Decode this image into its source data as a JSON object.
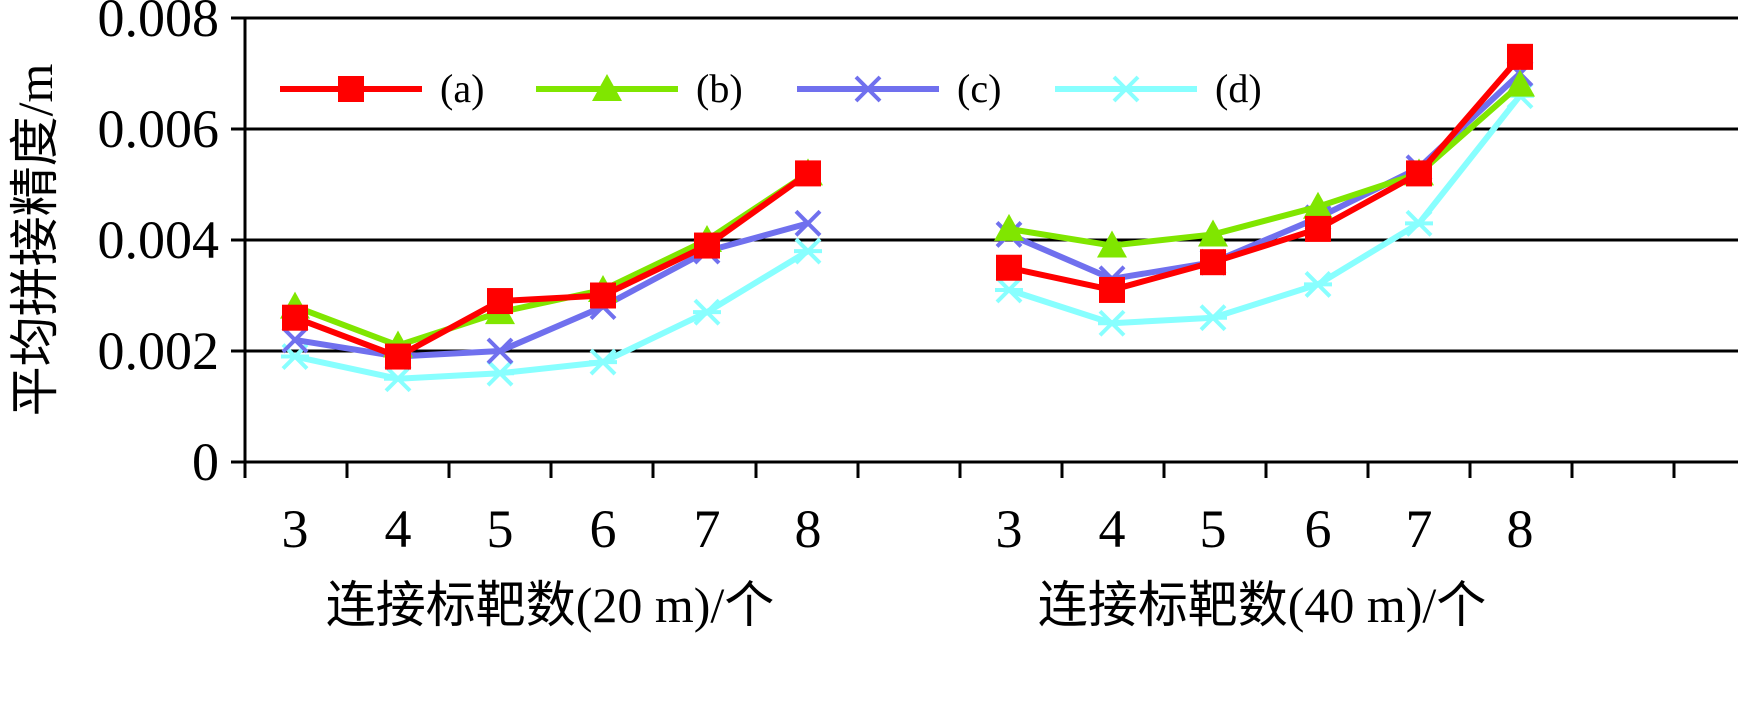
{
  "chart_data": {
    "type": "line",
    "ylabel": "平均拼接精度/m",
    "ylim": [
      0,
      0.008
    ],
    "yticks": [
      "0",
      "0.002",
      "0.004",
      "0.006",
      "0.008"
    ],
    "grid": true,
    "legend_position": "top",
    "colors": {
      "a": "#ff0000",
      "b": "#80e600",
      "c": "#7070ee",
      "d": "#88ffff",
      "axis": "#000000"
    },
    "groups": [
      {
        "xlabel": "连接标靶数(20 m)/个",
        "categories": [
          "3",
          "4",
          "5",
          "6",
          "7",
          "8"
        ],
        "series": [
          {
            "name": "(a)",
            "key": "a",
            "marker": "square",
            "values": [
              0.0026,
              0.0019,
              0.0029,
              0.003,
              0.0039,
              0.0052
            ]
          },
          {
            "name": "(b)",
            "key": "b",
            "marker": "triangle",
            "values": [
              0.0028,
              0.0021,
              0.0027,
              0.0031,
              0.004,
              0.0052
            ]
          },
          {
            "name": "(c)",
            "key": "c",
            "marker": "x",
            "values": [
              0.0022,
              0.0019,
              0.002,
              0.0028,
              0.0038,
              0.0043
            ]
          },
          {
            "name": "(d)",
            "key": "d",
            "marker": "asterisk",
            "values": [
              0.0019,
              0.0015,
              0.0016,
              0.0018,
              0.0027,
              0.0038
            ]
          }
        ]
      },
      {
        "xlabel": "连接标靶数(40 m)/个",
        "categories": [
          "3",
          "4",
          "5",
          "6",
          "7",
          "8"
        ],
        "series": [
          {
            "name": "(a)",
            "key": "a",
            "marker": "square",
            "values": [
              0.0035,
              0.0031,
              0.0036,
              0.0042,
              0.0052,
              0.0073
            ]
          },
          {
            "name": "(b)",
            "key": "b",
            "marker": "triangle",
            "values": [
              0.0042,
              0.0039,
              0.0041,
              0.0046,
              0.0052,
              0.0068
            ]
          },
          {
            "name": "(c)",
            "key": "c",
            "marker": "x",
            "values": [
              0.0041,
              0.0033,
              0.0036,
              0.0044,
              0.0053,
              0.007
            ]
          },
          {
            "name": "(d)",
            "key": "d",
            "marker": "asterisk",
            "values": [
              0.0031,
              0.0025,
              0.0026,
              0.0032,
              0.0043,
              0.0066
            ]
          }
        ]
      }
    ],
    "legend": [
      {
        "label": "(a)",
        "key": "a",
        "marker": "square"
      },
      {
        "label": "(b)",
        "key": "b",
        "marker": "triangle"
      },
      {
        "label": "(c)",
        "key": "c",
        "marker": "x"
      },
      {
        "label": "(d)",
        "key": "d",
        "marker": "asterisk"
      }
    ]
  }
}
